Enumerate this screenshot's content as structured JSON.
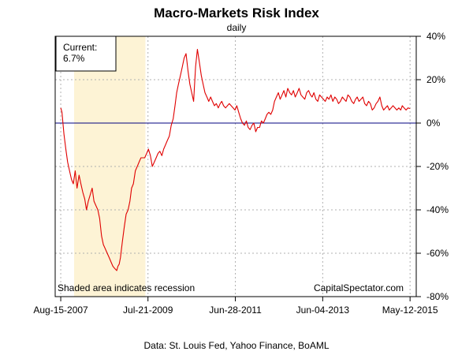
{
  "chart_data": {
    "type": "line",
    "title": "Macro-Markets Risk Index",
    "subtitle": "daily",
    "source": "Data: St. Louis Fed, Yahoo Finance, BoAML",
    "watermark": "CapitalSpectator.com",
    "current_box": {
      "label": "Current:",
      "value": "6.7%"
    },
    "shaded_note": "Shaded area indicates recession",
    "recession": {
      "start": "2007-12-01",
      "end": "2009-06-30"
    },
    "x_ticks": [
      "2007-08-15",
      "2009-07-21",
      "2011-06-28",
      "2013-06-04",
      "2015-05-12"
    ],
    "x_tick_labels": [
      "Aug-15-2007",
      "Jul-21-2009",
      "Jun-28-2011",
      "Jun-04-2013",
      "May-12-2015"
    ],
    "y_ticks": [
      -80,
      -60,
      -40,
      -20,
      0,
      20,
      40
    ],
    "y_tick_labels": [
      "-80%",
      "-60%",
      "-40%",
      "-20%",
      "0%",
      "20%",
      "40%"
    ],
    "ylim": [
      -80,
      40
    ],
    "xlim": [
      "2007-07-01",
      "2015-07-01"
    ],
    "grid": true,
    "zero_line": true,
    "colors": {
      "series": "#e00000",
      "recession": "#fdf3d5",
      "zero_line": "#000080",
      "grid": "#b0b0b0"
    },
    "series": [
      {
        "dates": [
          "2007-08-15",
          "2007-08-25",
          "2007-09-10",
          "2007-09-25",
          "2007-10-10",
          "2007-10-25",
          "2007-11-10",
          "2007-11-25",
          "2007-12-10",
          "2007-12-25",
          "2008-01-10",
          "2008-01-25",
          "2008-02-10",
          "2008-02-25",
          "2008-03-10",
          "2008-03-25",
          "2008-04-10",
          "2008-04-25",
          "2008-05-10",
          "2008-05-25",
          "2008-06-10",
          "2008-06-25",
          "2008-07-10",
          "2008-07-25",
          "2008-08-10",
          "2008-08-25",
          "2008-09-10",
          "2008-09-25",
          "2008-10-10",
          "2008-10-25",
          "2008-11-10",
          "2008-11-20",
          "2008-11-30",
          "2008-12-10",
          "2008-12-25",
          "2009-01-10",
          "2009-01-25",
          "2009-02-10",
          "2009-02-25",
          "2009-03-10",
          "2009-03-25",
          "2009-04-10",
          "2009-04-25",
          "2009-05-10",
          "2009-05-25",
          "2009-06-10",
          "2009-06-25",
          "2009-07-10",
          "2009-07-25",
          "2009-08-10",
          "2009-08-25",
          "2009-09-10",
          "2009-09-25",
          "2009-10-10",
          "2009-10-25",
          "2009-11-10",
          "2009-11-25",
          "2009-12-10",
          "2009-12-25",
          "2010-01-10",
          "2010-01-25",
          "2010-02-10",
          "2010-02-25",
          "2010-03-10",
          "2010-03-25",
          "2010-04-10",
          "2010-04-25",
          "2010-05-10",
          "2010-05-25",
          "2010-06-10",
          "2010-06-25",
          "2010-07-10",
          "2010-07-25",
          "2010-08-10",
          "2010-08-25",
          "2010-09-10",
          "2010-09-25",
          "2010-10-10",
          "2010-10-25",
          "2010-11-10",
          "2010-11-25",
          "2010-12-10",
          "2010-12-25",
          "2011-01-10",
          "2011-01-25",
          "2011-02-10",
          "2011-02-25",
          "2011-03-10",
          "2011-03-25",
          "2011-04-10",
          "2011-04-25",
          "2011-05-10",
          "2011-05-25",
          "2011-06-10",
          "2011-06-25",
          "2011-07-10",
          "2011-07-25",
          "2011-08-10",
          "2011-08-25",
          "2011-09-10",
          "2011-09-25",
          "2011-10-10",
          "2011-10-25",
          "2011-11-10",
          "2011-11-25",
          "2011-12-10",
          "2011-12-25",
          "2012-01-10",
          "2012-01-25",
          "2012-02-10",
          "2012-02-25",
          "2012-03-10",
          "2012-03-25",
          "2012-04-10",
          "2012-04-25",
          "2012-05-10",
          "2012-05-25",
          "2012-06-10",
          "2012-06-25",
          "2012-07-10",
          "2012-07-25",
          "2012-08-10",
          "2012-08-25",
          "2012-09-10",
          "2012-09-25",
          "2012-10-10",
          "2012-10-25",
          "2012-11-10",
          "2012-11-25",
          "2012-12-10",
          "2012-12-25",
          "2013-01-10",
          "2013-01-25",
          "2013-02-10",
          "2013-02-25",
          "2013-03-10",
          "2013-03-25",
          "2013-04-10",
          "2013-04-25",
          "2013-05-10",
          "2013-05-25",
          "2013-06-10",
          "2013-06-25",
          "2013-07-10",
          "2013-07-25",
          "2013-08-10",
          "2013-08-25",
          "2013-09-10",
          "2013-09-25",
          "2013-10-10",
          "2013-10-25",
          "2013-11-10",
          "2013-11-25",
          "2013-12-10",
          "2013-12-25",
          "2014-01-10",
          "2014-01-25",
          "2014-02-10",
          "2014-02-25",
          "2014-03-10",
          "2014-03-25",
          "2014-04-10",
          "2014-04-25",
          "2014-05-10",
          "2014-05-25",
          "2014-06-10",
          "2014-06-25",
          "2014-07-10",
          "2014-07-25",
          "2014-08-10",
          "2014-08-25",
          "2014-09-10",
          "2014-09-25",
          "2014-10-10",
          "2014-10-25",
          "2014-11-10",
          "2014-11-25",
          "2014-12-10",
          "2014-12-25",
          "2015-01-10",
          "2015-01-25",
          "2015-02-10",
          "2015-02-25",
          "2015-03-10",
          "2015-03-25",
          "2015-04-10",
          "2015-04-25",
          "2015-05-12"
        ],
        "values": [
          7,
          5,
          -5,
          -12,
          -18,
          -22,
          -26,
          -28,
          -22,
          -30,
          -24,
          -28,
          -32,
          -35,
          -40,
          -36,
          -33,
          -30,
          -36,
          -38,
          -40,
          -44,
          -52,
          -56,
          -58,
          -60,
          -62,
          -64,
          -66,
          -67,
          -68,
          -66,
          -65,
          -62,
          -55,
          -48,
          -42,
          -40,
          -36,
          -30,
          -28,
          -22,
          -20,
          -18,
          -16,
          -16,
          -16,
          -14,
          -12,
          -15,
          -20,
          -18,
          -16,
          -14,
          -13,
          -15,
          -12,
          -10,
          -8,
          -6,
          -1,
          2,
          8,
          14,
          18,
          22,
          26,
          30,
          32,
          24,
          18,
          14,
          10,
          26,
          34,
          28,
          22,
          18,
          14,
          12,
          10,
          12,
          10,
          8,
          9,
          7,
          9,
          10,
          8,
          7,
          8,
          9,
          8,
          7,
          6,
          8,
          5,
          2,
          0,
          -1,
          1,
          -2,
          -3,
          -1,
          0,
          -4,
          -2,
          -2,
          1,
          0,
          2,
          4,
          5,
          4,
          6,
          10,
          12,
          14,
          11,
          13,
          15,
          12,
          16,
          14,
          13,
          15,
          12,
          14,
          16,
          13,
          12,
          11,
          14,
          15,
          13,
          12,
          14,
          11,
          10,
          13,
          12,
          11,
          10,
          12,
          11,
          13,
          10,
          12,
          11,
          9,
          10,
          12,
          11,
          10,
          13,
          12,
          10,
          9,
          11,
          12,
          10,
          11,
          12,
          9,
          8,
          10,
          9,
          6,
          7,
          9,
          10,
          12,
          8,
          6,
          7,
          8,
          6,
          7,
          8,
          7,
          6,
          7,
          6,
          8,
          7,
          6,
          7,
          6.7
        ],
        "name": ""
      }
    ]
  }
}
